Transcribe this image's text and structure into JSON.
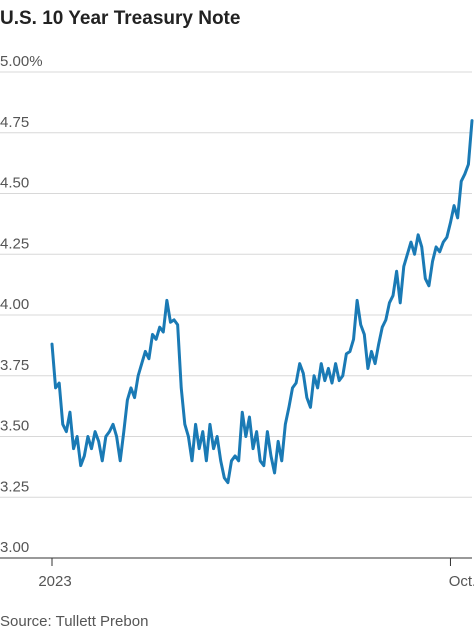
{
  "chart_data": {
    "type": "line",
    "title": "U.S. 10 Year Treasury Note",
    "source": "Source: Tullett Prebon",
    "categories": [
      "2023",
      null,
      null,
      null,
      null,
      null,
      null,
      null,
      null,
      null,
      null,
      null,
      null,
      null,
      null,
      null,
      null,
      null,
      null,
      null,
      null,
      null,
      null,
      null,
      null,
      null,
      null,
      null,
      null,
      null,
      null,
      null,
      null,
      null,
      null,
      null,
      null,
      null,
      null,
      null,
      null,
      null,
      null,
      null,
      null,
      null,
      null,
      null,
      null,
      null,
      null,
      null,
      null,
      null,
      null,
      null,
      null,
      null,
      null,
      null,
      null,
      null,
      null,
      null,
      null,
      null,
      null,
      null,
      null,
      null,
      null,
      null,
      null,
      null,
      null,
      null,
      null,
      null,
      null,
      null,
      null,
      null,
      null,
      null,
      null,
      null,
      null,
      null,
      null,
      null,
      null,
      null,
      null,
      null,
      null,
      null,
      null,
      null,
      null,
      null,
      null,
      null,
      null,
      null,
      null,
      null,
      null,
      null,
      null,
      null,
      null,
      "Oct.",
      null,
      null,
      null,
      null,
      null,
      null
    ],
    "values": [
      3.88,
      3.7,
      3.72,
      3.55,
      3.52,
      3.6,
      3.45,
      3.5,
      3.38,
      3.42,
      3.5,
      3.45,
      3.52,
      3.48,
      3.4,
      3.5,
      3.52,
      3.55,
      3.5,
      3.4,
      3.52,
      3.65,
      3.7,
      3.66,
      3.75,
      3.8,
      3.85,
      3.82,
      3.92,
      3.9,
      3.95,
      3.93,
      4.06,
      3.97,
      3.98,
      3.96,
      3.7,
      3.55,
      3.5,
      3.4,
      3.55,
      3.45,
      3.52,
      3.4,
      3.55,
      3.45,
      3.5,
      3.4,
      3.33,
      3.31,
      3.4,
      3.42,
      3.4,
      3.6,
      3.5,
      3.58,
      3.45,
      3.52,
      3.4,
      3.38,
      3.52,
      3.42,
      3.35,
      3.48,
      3.4,
      3.55,
      3.62,
      3.7,
      3.72,
      3.8,
      3.76,
      3.66,
      3.62,
      3.75,
      3.7,
      3.8,
      3.73,
      3.78,
      3.72,
      3.8,
      3.73,
      3.75,
      3.84,
      3.85,
      3.9,
      4.06,
      3.96,
      3.92,
      3.78,
      3.85,
      3.8,
      3.88,
      3.95,
      3.98,
      4.05,
      4.08,
      4.18,
      4.05,
      4.2,
      4.25,
      4.3,
      4.25,
      4.33,
      4.28,
      4.15,
      4.12,
      4.22,
      4.28,
      4.26,
      4.3,
      4.32,
      4.38,
      4.45,
      4.4,
      4.55,
      4.58,
      4.62,
      4.8
    ],
    "color": "#1a7ab5",
    "ylim": [
      3,
      5
    ],
    "yticks": [
      {
        "value": 3,
        "label": "3.00"
      },
      3.25,
      {
        "value": 3.5,
        "label": "3.50"
      },
      3.75,
      {
        "value": 4,
        "label": "4.00"
      },
      4.25,
      {
        "value": 4.5,
        "label": "4.50"
      },
      4.75,
      {
        "value": 5,
        "label": "5.00%"
      }
    ],
    "grid": true
  }
}
